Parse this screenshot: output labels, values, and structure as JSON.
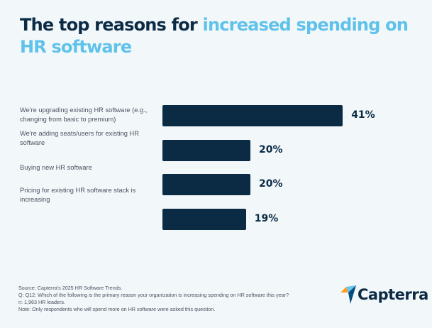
{
  "title": {
    "part1": "The top reasons for ",
    "part2": "increased spending on HR software"
  },
  "colors": {
    "bar": "#0b2b45",
    "title": "#0b2b45",
    "highlight": "#5ec2ea",
    "background": "#f2f7fa"
  },
  "chart_data": {
    "type": "bar",
    "orientation": "horizontal",
    "categories": [
      "We're upgrading existing HR software (e.g., changing from basic to premium)",
      "We're adding seats/users for existing HR software",
      "Buying new HR software",
      "Pricing for existing HR software stack is increasing"
    ],
    "values": [
      41,
      20,
      20,
      19
    ],
    "data_labels": [
      "41%",
      "20%",
      "20%",
      "19%"
    ],
    "grid": false
  },
  "notes": [
    "Source: Capterra's 2025 HR Software Trends.",
    "Q: Q12: Which of the following is the primary reason your organization is increasing spending on HR software this year?",
    "n: 1,963 HR leaders.",
    "Note: Only respondents who will spend more on HR software were asked this question."
  ],
  "logo": {
    "text": "Capterra",
    "icon": "capterra-arrow-icon"
  }
}
